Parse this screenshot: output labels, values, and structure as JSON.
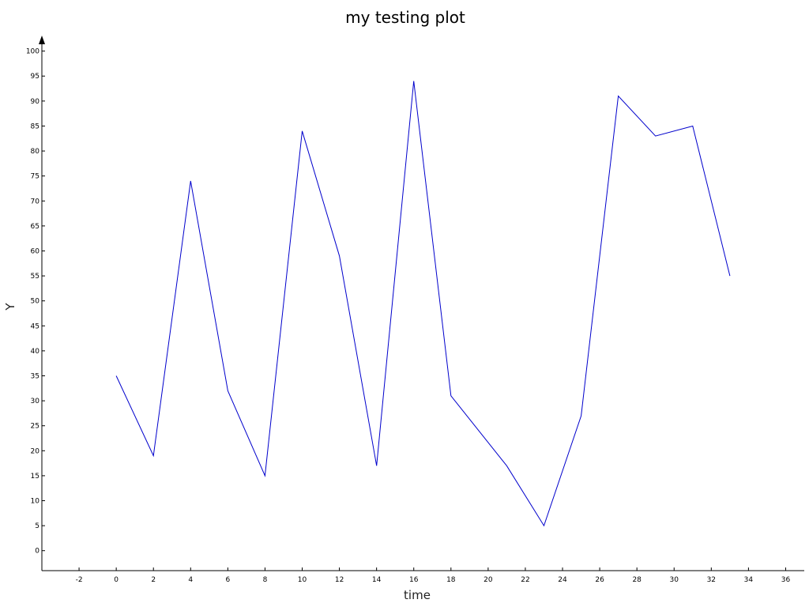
{
  "chart_data": {
    "type": "line",
    "title": "my testing plot",
    "xlabel": "time",
    "ylabel": "Y",
    "xlim": [
      -4,
      37
    ],
    "ylim": [
      -4,
      102
    ],
    "xticks": [
      -2,
      0,
      2,
      4,
      6,
      8,
      10,
      12,
      14,
      16,
      18,
      20,
      22,
      24,
      26,
      28,
      30,
      32,
      34,
      36
    ],
    "yticks": [
      0,
      5,
      10,
      15,
      20,
      25,
      30,
      35,
      40,
      45,
      50,
      55,
      60,
      65,
      70,
      75,
      80,
      85,
      90,
      95,
      100
    ],
    "grid": false,
    "legend": "none",
    "colors": {
      "line": "#0000cc",
      "axis": "#000000"
    },
    "series": [
      {
        "x": [
          0,
          2,
          4,
          6,
          8,
          10,
          12,
          14,
          16,
          18,
          21,
          23,
          25,
          27,
          29,
          31,
          33
        ],
        "y": [
          35,
          19,
          74,
          32,
          15,
          84,
          59,
          17,
          94,
          31,
          17,
          5,
          27,
          91,
          83,
          85,
          55
        ]
      }
    ]
  }
}
